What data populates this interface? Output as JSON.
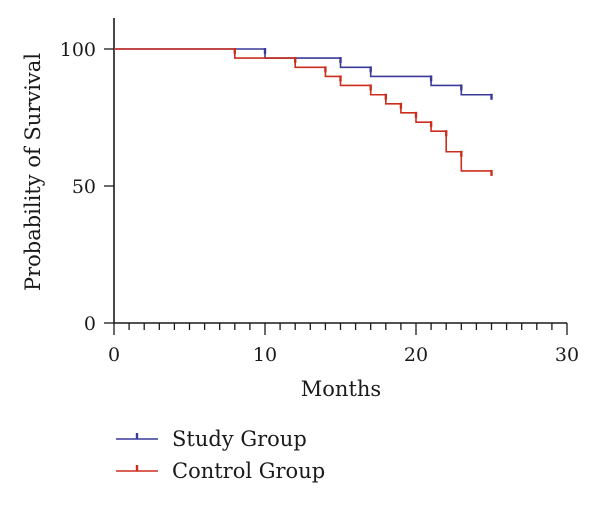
{
  "chart_data": {
    "type": "line",
    "subtype": "kaplan-meier step",
    "title": "",
    "xlabel": "Months",
    "ylabel": "Probability of Survival",
    "xlim": [
      0,
      30
    ],
    "ylim": [
      0,
      100
    ],
    "x_ticks": [
      0,
      10,
      20,
      30
    ],
    "x_minor_step": 1,
    "y_ticks": [
      0,
      50,
      100
    ],
    "grid": false,
    "legend": "bottom-left, below plot",
    "series": [
      {
        "name": "Study Group",
        "color": "#3a3a9a",
        "steps": [
          [
            0,
            100
          ],
          [
            10,
            96.7
          ],
          [
            15,
            93.3
          ],
          [
            17,
            90
          ],
          [
            21,
            86.7
          ],
          [
            23,
            83.3
          ],
          [
            25,
            83.3
          ]
        ],
        "censored": [
          10,
          15,
          17,
          21,
          23,
          25
        ]
      },
      {
        "name": "Control Group",
        "color": "#cc2e1e",
        "steps": [
          [
            0,
            100
          ],
          [
            8,
            96.7
          ],
          [
            12,
            93.3
          ],
          [
            14,
            90
          ],
          [
            15,
            86.7
          ],
          [
            17,
            83.3
          ],
          [
            18,
            80
          ],
          [
            19,
            76.7
          ],
          [
            20,
            73.3
          ],
          [
            21,
            70
          ],
          [
            22,
            62.5
          ],
          [
            23,
            55.5
          ],
          [
            25,
            55.5
          ]
        ],
        "censored": [
          8,
          12,
          14,
          15,
          17,
          18,
          19,
          20,
          21,
          22,
          23,
          25
        ]
      }
    ]
  }
}
